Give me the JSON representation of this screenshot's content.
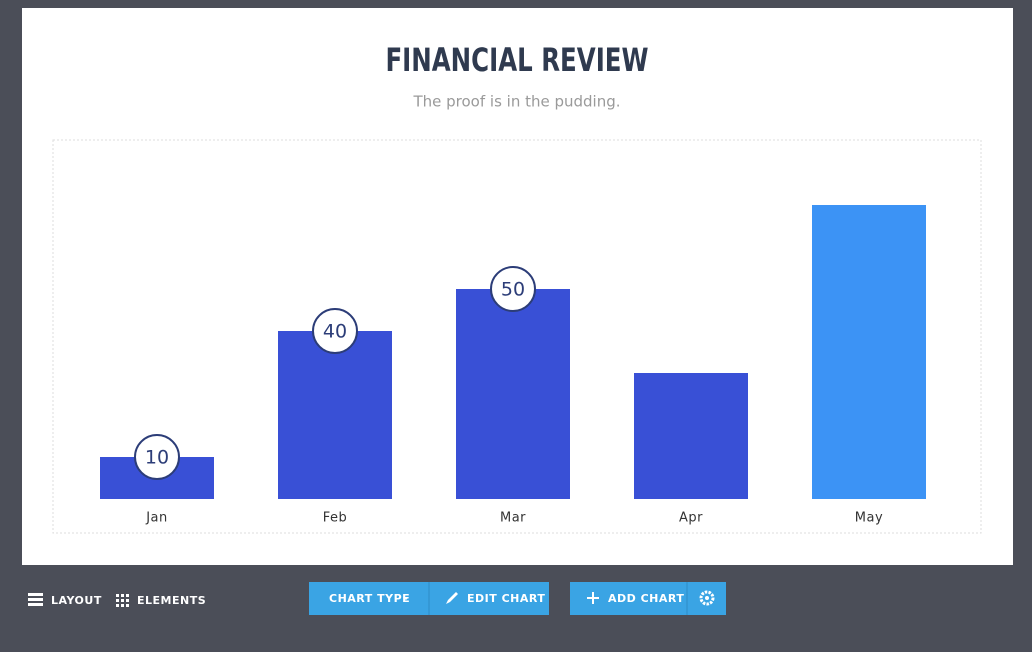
{
  "chart_data": {
    "type": "bar",
    "title": "FINANCIAL REVIEW",
    "subtitle": "The proof is in the pudding.",
    "categories": [
      "Jan",
      "Feb",
      "Mar",
      "Apr",
      "May"
    ],
    "values": [
      10,
      40,
      50,
      30,
      70
    ],
    "value_labels": [
      "10",
      "40",
      "50",
      null,
      null
    ],
    "colors": [
      "#3950d6",
      "#3950d6",
      "#3950d6",
      "#3950d6",
      "#3c93f5"
    ]
  },
  "toolbar": {
    "layout": "LAYOUT",
    "elements": "ELEMENTS",
    "chart_type": "CHART TYPE",
    "edit_chart": "EDIT CHART",
    "add_chart": "ADD CHART"
  }
}
